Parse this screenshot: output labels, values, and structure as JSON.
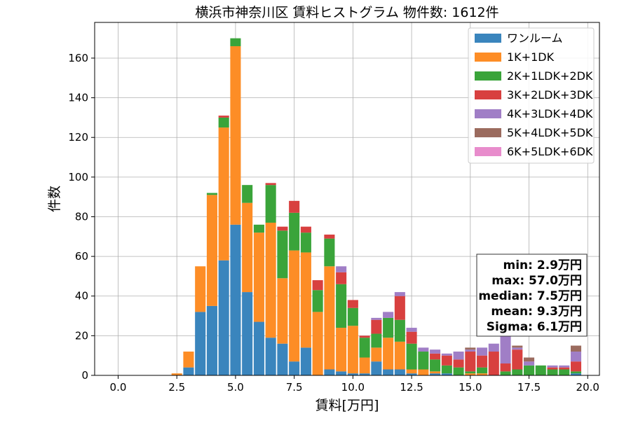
{
  "chart_data": {
    "type": "bar",
    "stacked": true,
    "title": "横浜市神奈川区 賃料ヒストグラム  物件数: 1612件",
    "xlabel": "賃料[万円]",
    "ylabel": "件数",
    "xlim": [
      -1.0,
      20.5
    ],
    "ylim": [
      0,
      178
    ],
    "x_ticks": [
      0.0,
      2.5,
      5.0,
      7.5,
      10.0,
      12.5,
      15.0,
      17.5,
      20.0
    ],
    "x_tick_labels": [
      "0.0",
      "2.5",
      "5.0",
      "7.5",
      "10.0",
      "12.5",
      "15.0",
      "17.5",
      "20.0"
    ],
    "y_ticks": [
      0,
      20,
      40,
      60,
      80,
      100,
      120,
      140,
      160
    ],
    "y_tick_labels": [
      "0",
      "20",
      "40",
      "60",
      "80",
      "100",
      "120",
      "140",
      "160"
    ],
    "bin_width": 0.5,
    "bar_fraction": 0.9,
    "grid": true,
    "legend_position": "top-right",
    "x": [
      2.5,
      3.0,
      3.5,
      4.0,
      4.5,
      5.0,
      5.5,
      6.0,
      6.5,
      7.0,
      7.5,
      8.0,
      8.5,
      9.0,
      9.5,
      10.0,
      10.5,
      11.0,
      11.5,
      12.0,
      12.5,
      13.0,
      13.5,
      14.0,
      14.5,
      15.0,
      15.5,
      16.0,
      16.5,
      17.0,
      17.5,
      18.0,
      18.5,
      19.0,
      19.5
    ],
    "series": [
      {
        "name": "ワンルーム",
        "color": "#3a85bd",
        "values": [
          0,
          4,
          32,
          35,
          58,
          76,
          42,
          27,
          19,
          16,
          7,
          14,
          0,
          3,
          2,
          1,
          1,
          7,
          3,
          3,
          1,
          0,
          1,
          1,
          0,
          0,
          0,
          0,
          0,
          0,
          0,
          0,
          0,
          0,
          1
        ]
      },
      {
        "name": "1K+1DK",
        "color": "#fd8d26",
        "values": [
          1,
          8,
          23,
          56,
          67,
          90,
          45,
          45,
          58,
          33,
          56,
          48,
          32,
          52,
          22,
          24,
          8,
          7,
          16,
          14,
          2,
          3,
          1,
          0,
          0,
          1,
          1,
          0,
          0,
          0,
          0,
          0,
          0,
          0,
          0
        ]
      },
      {
        "name": "2K+1LDK+2DK",
        "color": "#3aa43a",
        "values": [
          0,
          0,
          0,
          1,
          5,
          4,
          9,
          4,
          19,
          24,
          19,
          10,
          11,
          14,
          22,
          9,
          10,
          7,
          10,
          11,
          13,
          9,
          6,
          4,
          4,
          1,
          3,
          0,
          2,
          3,
          5,
          5,
          3,
          3,
          1
        ]
      },
      {
        "name": "3K+2LDK+3DK",
        "color": "#d8403f",
        "values": [
          0,
          0,
          0,
          0,
          1,
          0,
          0,
          0,
          1,
          2,
          6,
          3,
          5,
          2,
          6,
          4,
          1,
          7,
          0,
          12,
          6,
          0,
          3,
          5,
          4,
          10,
          6,
          12,
          4,
          10,
          0,
          0,
          1,
          1,
          5
        ]
      },
      {
        "name": "4K+3LDK+4DK",
        "color": "#a07ec6",
        "values": [
          0,
          0,
          0,
          0,
          0,
          0,
          0,
          0,
          0,
          0,
          0,
          0,
          0,
          0,
          3,
          0,
          0,
          1,
          3,
          2,
          2,
          2,
          2,
          1,
          4,
          1,
          4,
          4,
          14,
          1,
          2,
          0,
          1,
          1,
          5
        ]
      },
      {
        "name": "5K+4LDK+5DK",
        "color": "#9b6b5e",
        "values": [
          0,
          0,
          0,
          0,
          0,
          0,
          0,
          0,
          0,
          0,
          0,
          0,
          0,
          0,
          0,
          0,
          0,
          0,
          0,
          0,
          0,
          0,
          0,
          0,
          0,
          1,
          0,
          0,
          0,
          1,
          2,
          0,
          0,
          0,
          3
        ]
      },
      {
        "name": "6K+5LDK+6DK",
        "color": "#e88ccc",
        "values": [
          0,
          0,
          0,
          0,
          0,
          0,
          0,
          0,
          0,
          0,
          0,
          0,
          0,
          0,
          0,
          0,
          0,
          0,
          0,
          0,
          0,
          0,
          0,
          0,
          0,
          0,
          0,
          0,
          0,
          0,
          0,
          0,
          0,
          0,
          0
        ]
      }
    ],
    "stats": {
      "min": "min: 2.9万円",
      "max": "max: 57.0万円",
      "median": "median: 7.5万円",
      "mean": "mean: 9.3万円",
      "sigma": "Sigma: 6.1万円"
    }
  }
}
